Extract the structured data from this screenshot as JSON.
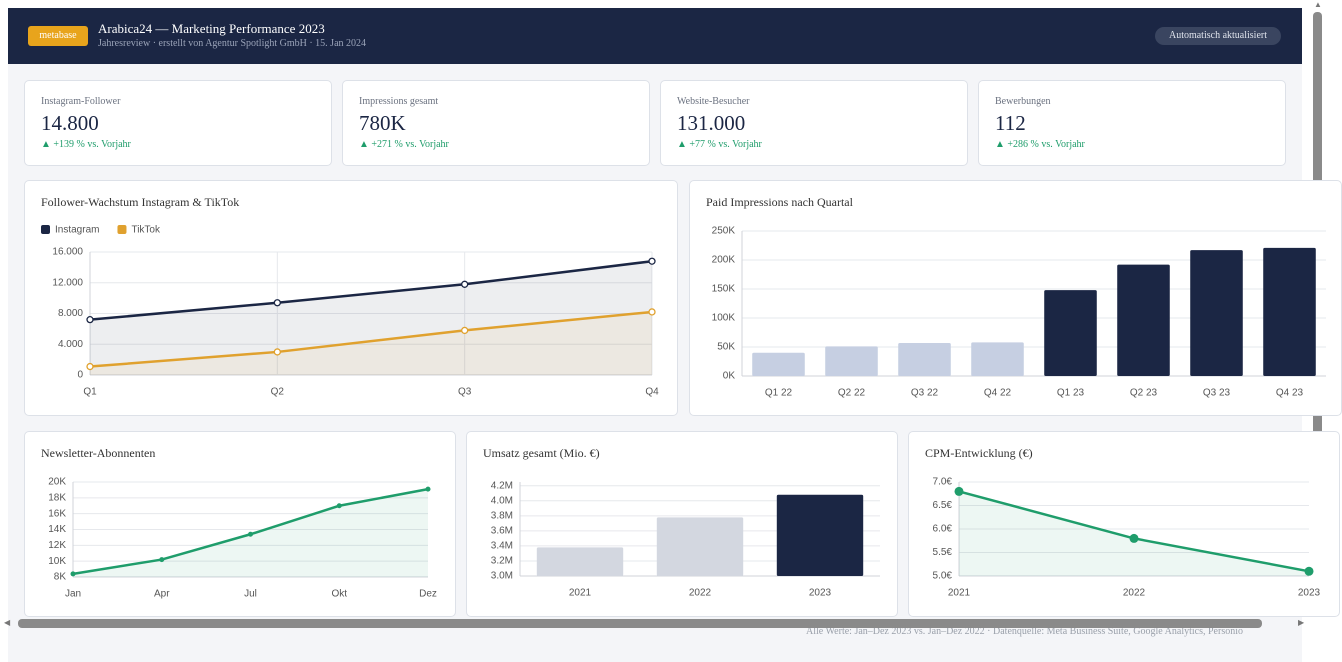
{
  "header": {
    "logo": "metabase",
    "title": "Arabica24 — Marketing Performance 2023",
    "subtitle": "Jahresreview · erstellt von Agentur Spotlight GmbH · 15. Jan 2024",
    "badge": "Automatisch aktualisiert"
  },
  "kpis": [
    {
      "label": "Instagram-Follower",
      "value": "14.800",
      "delta": "▲ +139 % vs. Vorjahr"
    },
    {
      "label": "Impressions gesamt",
      "value": "780K",
      "delta": "▲ +271 % vs. Vorjahr"
    },
    {
      "label": "Website-Besucher",
      "value": "131.000",
      "delta": "▲ +77 % vs. Vorjahr"
    },
    {
      "label": "Bewerbungen",
      "value": "112",
      "delta": "▲ +286 % vs. Vorjahr"
    }
  ],
  "chart_data": [
    {
      "type": "line",
      "title": "Follower-Wachstum Instagram & TikTok",
      "categories": [
        "Q1",
        "Q2",
        "Q3",
        "Q4"
      ],
      "series": [
        {
          "name": "Instagram",
          "color": "#1b2644",
          "values": [
            7200,
            9400,
            11800,
            14800
          ]
        },
        {
          "name": "TikTok",
          "color": "#e0a12e",
          "values": [
            1100,
            3000,
            5800,
            8200
          ]
        }
      ],
      "ylim": [
        0,
        16000
      ],
      "yticks": [
        0,
        {
          "value": 4000,
          "label": "4.000"
        },
        {
          "value": 8000,
          "label": "8.000"
        },
        {
          "value": 12000,
          "label": "12.000"
        },
        {
          "value": 16000,
          "label": "16.000"
        }
      ],
      "grid": true,
      "legend": "top-left"
    },
    {
      "type": "bar",
      "title": "Paid Impressions nach Quartal",
      "categories": [
        "Q1 22",
        "Q2 22",
        "Q3 22",
        "Q4 22",
        "Q1 23",
        "Q2 23",
        "Q3 23",
        "Q4 23"
      ],
      "values": [
        40000,
        51000,
        57000,
        58000,
        148000,
        192000,
        217000,
        221000
      ],
      "colors": [
        "#c6cfe2",
        "#c6cfe2",
        "#c6cfe2",
        "#c6cfe2",
        "#1b2644",
        "#1b2644",
        "#1b2644",
        "#1b2644"
      ],
      "ylim": [
        0,
        250000
      ],
      "yticks": [
        {
          "value": 0,
          "label": "0K"
        },
        {
          "value": 50000,
          "label": "50K"
        },
        {
          "value": 100000,
          "label": "100K"
        },
        {
          "value": 150000,
          "label": "150K"
        },
        {
          "value": 200000,
          "label": "200K"
        },
        {
          "value": 250000,
          "label": "250K"
        }
      ],
      "grid": true
    },
    {
      "type": "line",
      "title": "Newsletter-Abonnenten",
      "categories": [
        "Jan",
        "Apr",
        "Jul",
        "Okt",
        "Dez"
      ],
      "values": [
        8400,
        10200,
        13400,
        17000,
        19100
      ],
      "color": "#1f9d6b",
      "ylim": [
        8000,
        20000
      ],
      "yticks": [
        {
          "value": 8000,
          "label": "8K"
        },
        {
          "value": 10000,
          "label": "10K"
        },
        {
          "value": 12000,
          "label": "12K"
        },
        {
          "value": 14000,
          "label": "14K"
        },
        {
          "value": 16000,
          "label": "16K"
        },
        {
          "value": 18000,
          "label": "18K"
        },
        {
          "value": 20000,
          "label": "20K"
        }
      ],
      "grid": true
    },
    {
      "type": "bar",
      "title": "Umsatz gesamt (Mio. €)",
      "categories": [
        "2021",
        "2022",
        "2023"
      ],
      "values": [
        3.38,
        3.78,
        4.08
      ],
      "colors": [
        "#d3d7e0",
        "#d3d7e0",
        "#1b2644"
      ],
      "ylim": [
        3.0,
        4.25
      ],
      "yticks": [
        {
          "value": 3.0,
          "label": "3.0M"
        },
        {
          "value": 3.2,
          "label": "3.2M"
        },
        {
          "value": 3.4,
          "label": "3.4M"
        },
        {
          "value": 3.6,
          "label": "3.6M"
        },
        {
          "value": 3.8,
          "label": "3.8M"
        },
        {
          "value": 4.0,
          "label": "4.0M"
        },
        {
          "value": 4.2,
          "label": "4.2M"
        }
      ],
      "grid": true
    },
    {
      "type": "line",
      "title": "CPM-Entwicklung (€)",
      "categories": [
        "2021",
        "2022",
        "2023"
      ],
      "values": [
        6.8,
        5.8,
        5.1
      ],
      "color": "#1f9d6b",
      "ylim": [
        5.0,
        7.0
      ],
      "yticks": [
        {
          "value": 5.0,
          "label": "5.0€"
        },
        {
          "value": 5.5,
          "label": "5.5€"
        },
        {
          "value": 6.0,
          "label": "6.0€"
        },
        {
          "value": 6.5,
          "label": "6.5€"
        },
        {
          "value": 7.0,
          "label": "7.0€"
        }
      ],
      "grid": true
    }
  ],
  "footer": "Alle Werte: Jan–Dez 2023 vs. Jan–Dez 2022 · Datenquelle: Meta Business Suite, Google Analytics, Personio"
}
